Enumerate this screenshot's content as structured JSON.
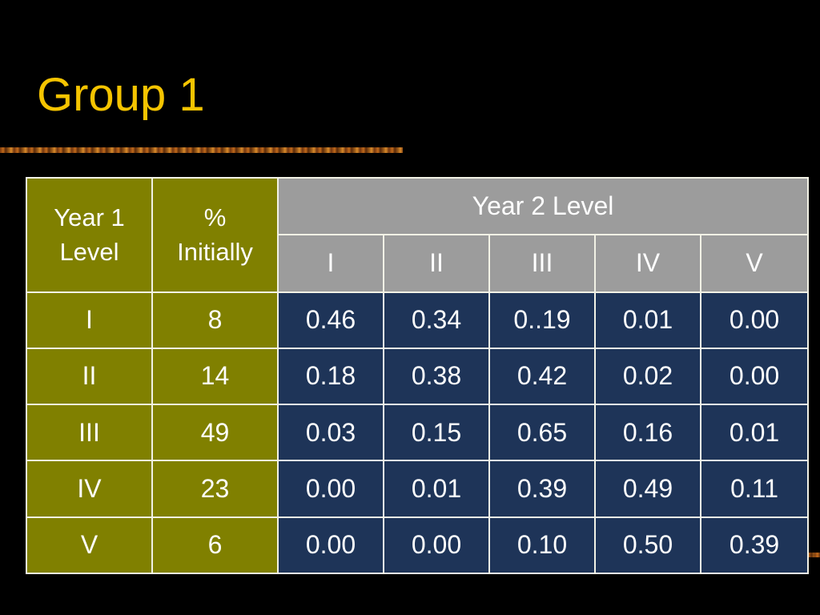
{
  "slide": {
    "title": "Group 1"
  },
  "table": {
    "col1_header": "Year 1 Level",
    "col2_header": "% Initially",
    "group_header": "Year 2 Level",
    "sub_headers": [
      "I",
      "II",
      "III",
      "IV",
      "V"
    ],
    "rows": [
      {
        "level": "I",
        "percent": "8",
        "values": [
          "0.46",
          "0.34",
          "0..19",
          "0.01",
          "0.00"
        ]
      },
      {
        "level": "II",
        "percent": "14",
        "values": [
          "0.18",
          "0.38",
          "0.42",
          "0.02",
          "0.00"
        ]
      },
      {
        "level": "III",
        "percent": "49",
        "values": [
          "0.03",
          "0.15",
          "0.65",
          "0.16",
          "0.01"
        ]
      },
      {
        "level": "IV",
        "percent": "23",
        "values": [
          "0.00",
          "0.01",
          "0.39",
          "0.49",
          "0.11"
        ]
      },
      {
        "level": "V",
        "percent": "6",
        "values": [
          "0.00",
          "0.00",
          "0.10",
          "0.50",
          "0.39"
        ]
      }
    ]
  },
  "colors": {
    "title": "#f5c400",
    "background": "#000000",
    "olive": "#808000",
    "gray": "#9c9c9c",
    "navy": "#1e3458"
  }
}
